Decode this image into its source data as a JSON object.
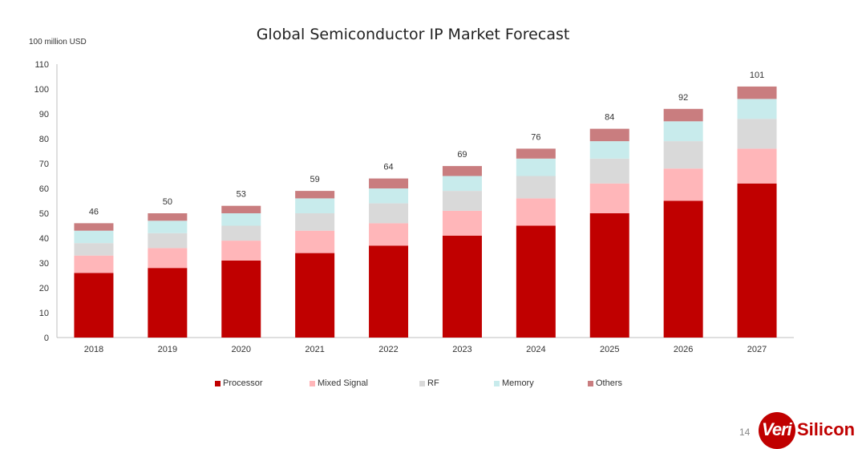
{
  "chart_data": {
    "type": "bar",
    "stacked": true,
    "title": "Global Semiconductor IP Market Forecast",
    "ylabel": "100 million USD",
    "xlabel": "",
    "ylim": [
      0,
      110
    ],
    "yticks": [
      0,
      10,
      20,
      30,
      40,
      50,
      60,
      70,
      80,
      90,
      100,
      110
    ],
    "grid": false,
    "legend_position": "bottom",
    "categories": [
      "2018",
      "2019",
      "2020",
      "2021",
      "2022",
      "2023",
      "2024",
      "2025",
      "2026",
      "2027"
    ],
    "series": [
      {
        "name": "Processor",
        "color": "#C00000",
        "values": [
          26,
          28,
          31,
          34,
          37,
          41,
          45,
          50,
          55,
          62
        ]
      },
      {
        "name": "Mixed Signal",
        "color": "#FFB6B9",
        "values": [
          7,
          8,
          8,
          9,
          9,
          10,
          11,
          12,
          13,
          14
        ]
      },
      {
        "name": "RF",
        "color": "#D9D9D9",
        "values": [
          5,
          6,
          6,
          7,
          8,
          8,
          9,
          10,
          11,
          12
        ]
      },
      {
        "name": "Memory",
        "color": "#C8EBEC",
        "values": [
          5,
          5,
          5,
          6,
          6,
          6,
          7,
          7,
          8,
          8
        ]
      },
      {
        "name": "Others",
        "color": "#C97D7F",
        "values": [
          3,
          3,
          3,
          3,
          4,
          4,
          4,
          5,
          5,
          5
        ]
      }
    ],
    "totals": [
      46,
      50,
      53,
      59,
      64,
      69,
      76,
      84,
      92,
      101
    ]
  },
  "footer": {
    "page_number": "14",
    "logo_part1": "Veri",
    "logo_part2": "Silicon"
  }
}
